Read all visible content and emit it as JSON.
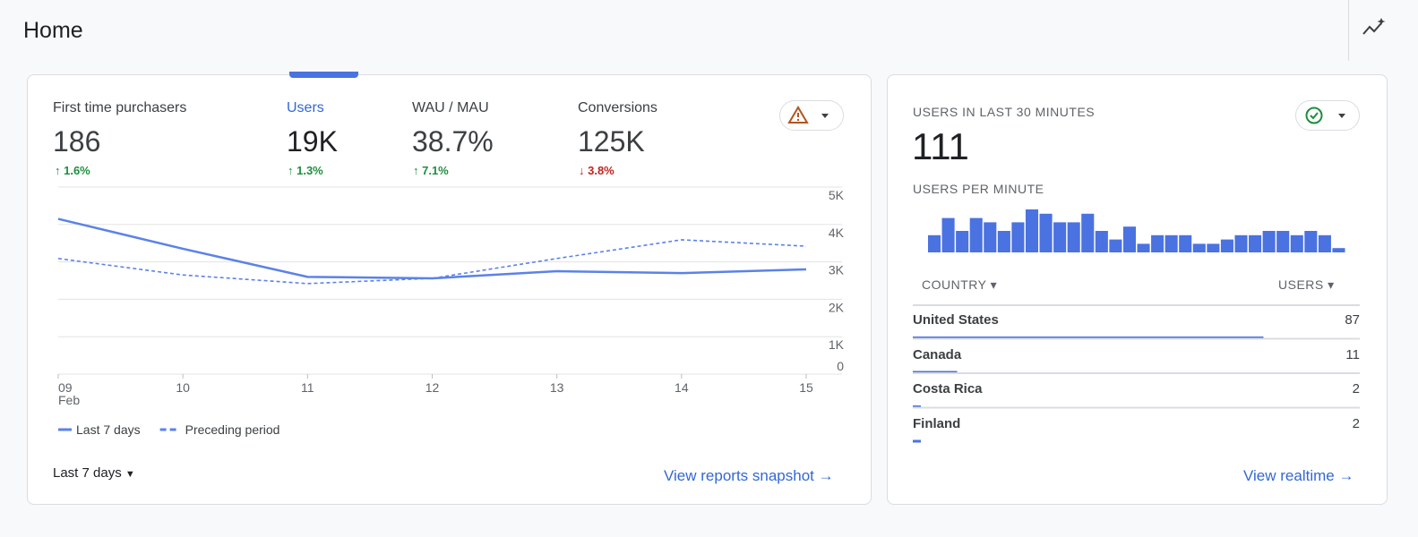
{
  "header": {
    "title": "Home"
  },
  "metrics": [
    {
      "label": "First time purchasers",
      "value": "186",
      "change": "↑ 1.6%"
    },
    {
      "label": "Users",
      "value": "19K",
      "change": "↑ 1.3%"
    },
    {
      "label": "WAU / MAU",
      "value": "38.7%",
      "change": "↑ 7.1%"
    },
    {
      "label": "Conversions",
      "value": "125K",
      "change": "↓ 3.8%"
    }
  ],
  "chart_data": [
    {
      "type": "line",
      "categories": [
        "09",
        "10",
        "11",
        "12",
        "13",
        "14",
        "15"
      ],
      "x_month": "Feb",
      "series": [
        {
          "name": "Last 7 days",
          "color": "#5b82e8",
          "dashed": false,
          "values": [
            4150,
            3350,
            2600,
            2560,
            2750,
            2700,
            2800
          ]
        },
        {
          "name": "Preceding period",
          "color": "#5b82e8",
          "dashed": true,
          "values": [
            3090,
            2650,
            2420,
            2560,
            3090,
            3590,
            3420
          ]
        }
      ],
      "ylim": [
        0,
        5000
      ],
      "yticks": [
        {
          "value": 0,
          "label": "0"
        },
        {
          "value": 1000,
          "label": "1K"
        },
        {
          "value": 2000,
          "label": "2K"
        },
        {
          "value": 3000,
          "label": "3K"
        },
        {
          "value": 4000,
          "label": "4K"
        },
        {
          "value": 5000,
          "label": "5K"
        }
      ],
      "grid": true
    },
    {
      "type": "bar",
      "title": "USERS PER MINUTE",
      "color": "#4a72e0",
      "values": [
        4,
        8,
        5,
        8,
        7,
        5,
        7,
        10,
        9,
        7,
        7,
        9,
        5,
        3,
        6,
        2,
        4,
        4,
        4,
        2,
        2,
        3,
        4,
        4,
        5,
        5,
        4,
        5,
        4,
        1
      ]
    }
  ],
  "period": "Last 7 days",
  "snapshot_link": "View reports snapshot",
  "realtime": {
    "title": "USERS IN LAST 30 MINUTES",
    "value": "111",
    "table": {
      "headers": [
        "COUNTRY",
        "USERS"
      ],
      "rows": [
        [
          "United States",
          87
        ],
        [
          "Canada",
          11
        ],
        [
          "Costa Rica",
          2
        ],
        [
          "Finland",
          2
        ]
      ]
    },
    "link": "View realtime"
  }
}
